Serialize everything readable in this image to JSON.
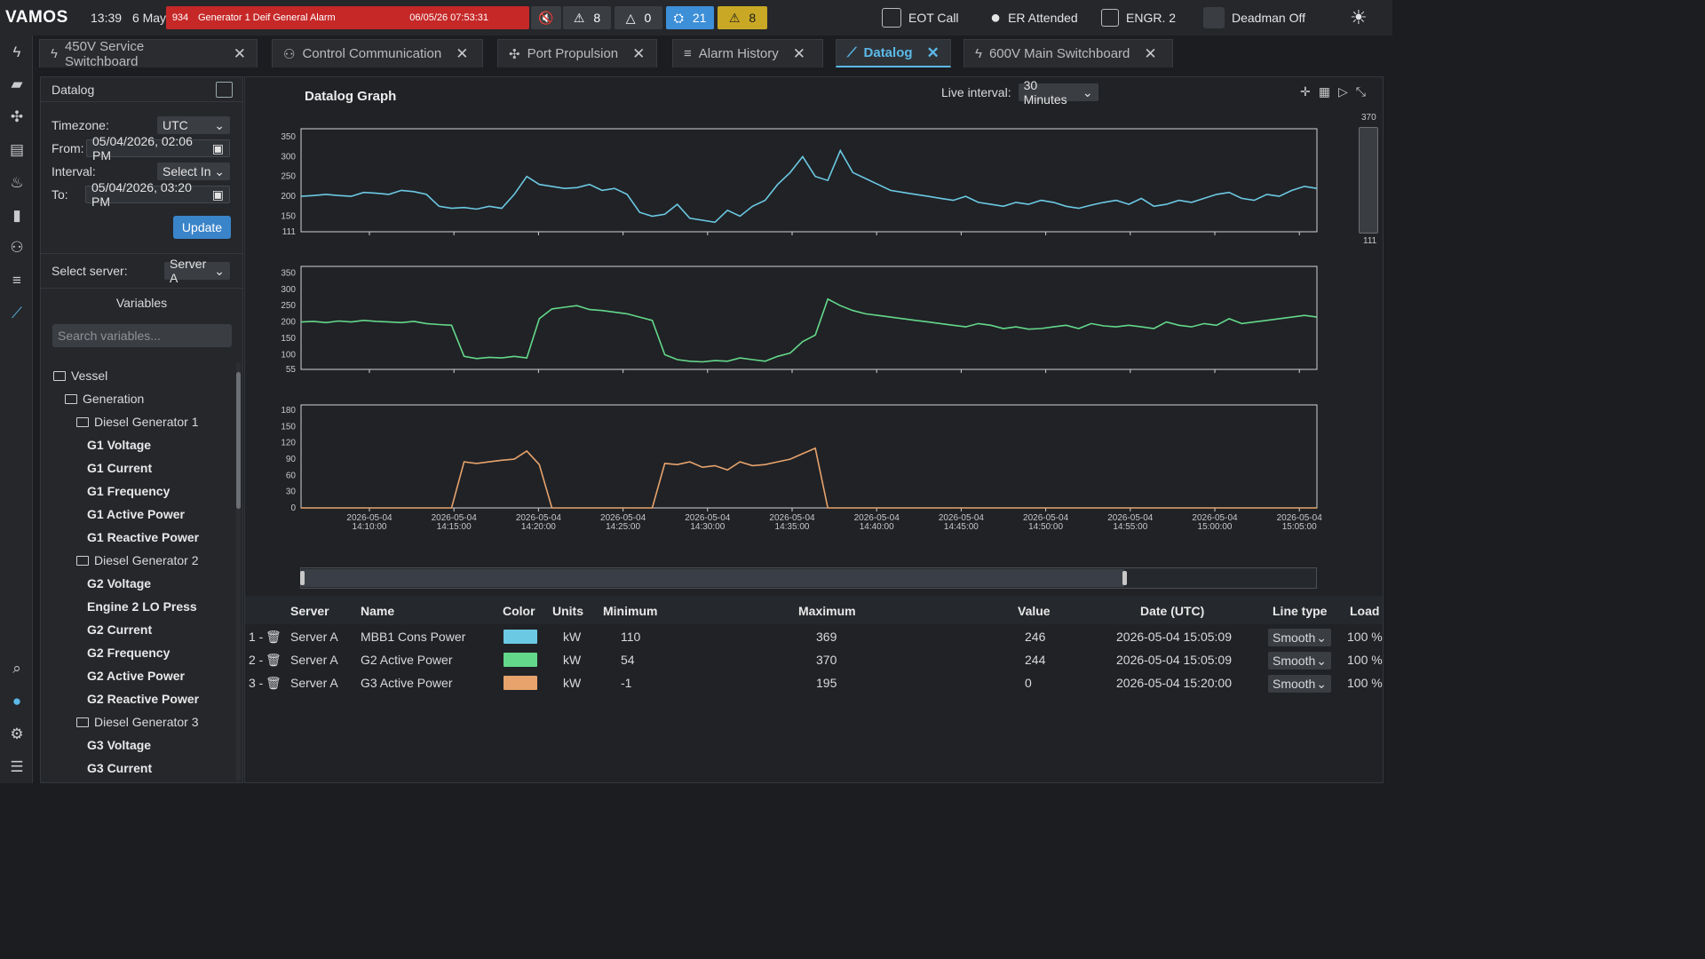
{
  "header": {
    "logo": "VAMOS",
    "time": "13:39",
    "date": "6 May",
    "alarm": {
      "number": "934",
      "text": "Generator 1 Deif General Alarm",
      "timestamp": "06/05/26 07:53:31"
    },
    "counters": [
      {
        "icon": "warning-triangle-icon",
        "count": "8"
      },
      {
        "icon": "warning-triangle-outline-icon",
        "count": "0"
      },
      {
        "icon": "ack-icon",
        "count": "21"
      },
      {
        "icon": "warning-triangle-icon",
        "count": "8"
      }
    ],
    "eot_call": "EOT Call",
    "er_attended": "ER Attended",
    "engineer": "ENGR. 2",
    "deadman": "Deadman Off",
    "colors": {
      "alarm": "#c62828",
      "blue": "#3d8fd8",
      "yellow": "#c9a825"
    }
  },
  "tabs": [
    {
      "label": "450V Service Switchboard",
      "icon": "switchboard-icon"
    },
    {
      "label": "Control Communication",
      "icon": "network-icon"
    },
    {
      "label": "Port Propulsion",
      "icon": "propeller-icon"
    },
    {
      "label": "Alarm History",
      "icon": "alarm-list-icon"
    },
    {
      "label": "Datalog",
      "icon": "chart-line-icon",
      "active": true
    },
    {
      "label": "600V Main Switchboard",
      "icon": "switchboard-icon"
    }
  ],
  "sidebar": {
    "title": "Datalog",
    "timezone_label": "Timezone:",
    "timezone": "UTC",
    "from_label": "From:",
    "from": "05/04/2026, 02:06 PM",
    "interval_label": "Interval:",
    "interval": "Select In",
    "to_label": "To:",
    "to": "05/04/2026, 03:20 PM",
    "update": "Update",
    "server_label": "Select server:",
    "server": "Server A",
    "variables_title": "Variables",
    "search_placeholder": "Search variables...",
    "tree": [
      {
        "label": "Vessel",
        "type": "folder"
      },
      {
        "label": "Generation",
        "type": "folder"
      },
      {
        "label": "Diesel Generator 1",
        "type": "folder"
      },
      {
        "label": "G1 Voltage",
        "type": "leaf"
      },
      {
        "label": "G1 Current",
        "type": "leaf"
      },
      {
        "label": "G1 Frequency",
        "type": "leaf"
      },
      {
        "label": "G1 Active Power",
        "type": "leaf"
      },
      {
        "label": "G1 Reactive Power",
        "type": "leaf"
      },
      {
        "label": "Diesel Generator 2",
        "type": "folder"
      },
      {
        "label": "G2 Voltage",
        "type": "leaf"
      },
      {
        "label": "Engine 2 LO Press",
        "type": "leaf"
      },
      {
        "label": "G2 Current",
        "type": "leaf"
      },
      {
        "label": "G2 Frequency",
        "type": "leaf"
      },
      {
        "label": "G2 Active Power",
        "type": "leaf"
      },
      {
        "label": "G2 Reactive Power",
        "type": "leaf"
      },
      {
        "label": "Diesel Generator 3",
        "type": "folder"
      },
      {
        "label": "G3 Voltage",
        "type": "leaf"
      },
      {
        "label": "G3 Current",
        "type": "leaf"
      }
    ]
  },
  "graph": {
    "title": "Datalog Graph",
    "live_label": "Live interval:",
    "live_value": "30 Minutes",
    "range_max": "370",
    "range_min": "111"
  },
  "table": {
    "headers": [
      "Server",
      "Name",
      "Color",
      "Units",
      "Minimum",
      "Maximum",
      "Value",
      "Date (UTC)",
      "Line type",
      "Load"
    ],
    "rows": [
      {
        "idx": "1 -",
        "server": "Server A",
        "name": "MBB1 Cons Power",
        "color": "#6cc9e3",
        "units": "kW",
        "min": "110",
        "max": "369",
        "value": "246",
        "date": "2026-05-04 15:05:09",
        "line": "Smooth",
        "load": "100 %"
      },
      {
        "idx": "2 -",
        "server": "Server A",
        "name": "G2 Active Power",
        "color": "#64d88a",
        "units": "kW",
        "min": "54",
        "max": "370",
        "value": "244",
        "date": "2026-05-04 15:05:09",
        "line": "Smooth",
        "load": "100 %"
      },
      {
        "idx": "3 -",
        "server": "Server A",
        "name": "G3 Active Power",
        "color": "#e8a36c",
        "units": "kW",
        "min": "-1",
        "max": "195",
        "value": "0",
        "date": "2026-05-04 15:20:00",
        "line": "Smooth",
        "load": "100 %"
      }
    ]
  },
  "chart_data": [
    {
      "type": "line",
      "series": [
        {
          "name": "MBB1 Cons Power",
          "color": "#6cc9e3",
          "values": [
            200,
            202,
            205,
            202,
            200,
            210,
            208,
            205,
            215,
            212,
            205,
            175,
            170,
            172,
            168,
            175,
            170,
            205,
            250,
            230,
            225,
            220,
            222,
            230,
            215,
            220,
            205,
            160,
            150,
            155,
            180,
            145,
            140,
            135,
            165,
            150,
            175,
            190,
            230,
            260,
            300,
            250,
            240,
            315,
            260,
            245,
            230,
            215,
            210,
            205,
            200,
            195,
            190,
            200,
            185,
            180,
            175,
            185,
            180,
            190,
            185,
            175,
            170,
            178,
            185,
            190,
            180,
            195,
            175,
            180,
            190,
            185,
            195,
            205,
            210,
            195,
            190,
            205,
            200,
            215,
            225,
            220
          ]
        }
      ],
      "x_ticks": [
        "2026-05-04 14:10:00",
        "2026-05-04 14:15:00",
        "2026-05-04 14:20:00",
        "2026-05-04 14:25:00",
        "2026-05-04 14:30:00",
        "2026-05-04 14:35:00",
        "2026-05-04 14:40:00",
        "2026-05-04 14:45:00",
        "2026-05-04 14:50:00",
        "2026-05-04 14:55:00",
        "2026-05-04 15:00:00",
        "2026-05-04 15:05:00"
      ],
      "y_ticks": [
        "350",
        "300",
        "250",
        "200",
        "150",
        "111"
      ],
      "ylim": [
        111,
        370
      ]
    },
    {
      "type": "line",
      "series": [
        {
          "name": "G2 Active Power",
          "color": "#64d88a",
          "values": [
            200,
            202,
            198,
            203,
            200,
            205,
            202,
            200,
            198,
            202,
            195,
            192,
            190,
            95,
            88,
            92,
            90,
            95,
            90,
            210,
            240,
            245,
            250,
            238,
            235,
            230,
            225,
            215,
            205,
            100,
            85,
            80,
            78,
            82,
            80,
            90,
            85,
            80,
            95,
            105,
            140,
            160,
            270,
            250,
            235,
            225,
            220,
            215,
            210,
            205,
            200,
            195,
            190,
            185,
            195,
            190,
            180,
            185,
            178,
            180,
            185,
            190,
            180,
            195,
            188,
            185,
            190,
            185,
            180,
            200,
            190,
            185,
            195,
            190,
            210,
            195,
            200,
            205,
            210,
            215,
            220,
            215
          ]
        }
      ],
      "x_ticks": [
        "2026-05-04 14:10:00",
        "2026-05-04 14:15:00",
        "2026-05-04 14:20:00",
        "2026-05-04 14:25:00",
        "2026-05-04 14:30:00",
        "2026-05-04 14:35:00",
        "2026-05-04 14:40:00",
        "2026-05-04 14:45:00",
        "2026-05-04 14:50:00",
        "2026-05-04 14:55:00",
        "2026-05-04 15:00:00",
        "2026-05-04 15:05:00"
      ],
      "y_ticks": [
        "350",
        "300",
        "250",
        "200",
        "150",
        "100",
        "55"
      ],
      "ylim": [
        55,
        370
      ]
    },
    {
      "type": "line",
      "series": [
        {
          "name": "G3 Active Power",
          "color": "#e8a36c",
          "values": [
            0,
            0,
            0,
            0,
            0,
            0,
            0,
            0,
            0,
            0,
            0,
            0,
            0,
            85,
            82,
            85,
            88,
            90,
            105,
            80,
            0,
            0,
            0,
            0,
            0,
            0,
            0,
            0,
            0,
            82,
            80,
            85,
            75,
            78,
            70,
            85,
            78,
            80,
            85,
            90,
            100,
            110,
            0,
            0,
            0,
            0,
            0,
            0,
            0,
            0,
            0,
            0,
            0,
            0,
            0,
            0,
            0,
            0,
            0,
            0,
            0,
            0,
            0,
            0,
            0,
            0,
            0,
            0,
            0,
            0,
            0,
            0,
            0,
            0,
            0,
            0,
            0,
            0,
            0,
            0,
            0,
            0
          ]
        }
      ],
      "x_ticks": [
        "2026-05-04 14:10:00",
        "2026-05-04 14:15:00",
        "2026-05-04 14:20:00",
        "2026-05-04 14:25:00",
        "2026-05-04 14:30:00",
        "2026-05-04 14:35:00",
        "2026-05-04 14:40:00",
        "2026-05-04 14:45:00",
        "2026-05-04 14:50:00",
        "2026-05-04 14:55:00",
        "2026-05-04 15:00:00",
        "2026-05-04 15:05:00"
      ],
      "y_ticks": [
        "180",
        "150",
        "120",
        "90",
        "60",
        "30",
        "0"
      ],
      "ylim": [
        0,
        190
      ]
    }
  ]
}
